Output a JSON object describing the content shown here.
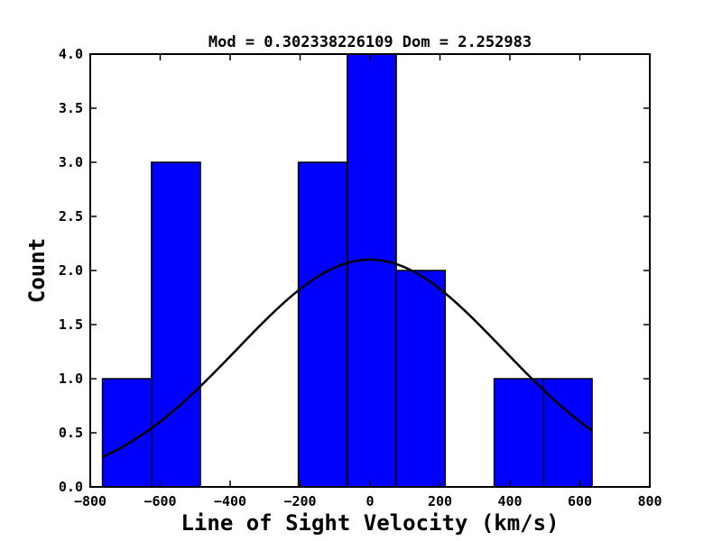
{
  "chart_data": {
    "type": "bar",
    "title": "Mod = 0.302338226109 Dom = 2.252983",
    "xlabel": "Line of Sight Velocity (km/s)",
    "ylabel": "Count",
    "xlim": [
      -800,
      800
    ],
    "ylim": [
      0,
      4
    ],
    "xticks": [
      -800,
      -600,
      -400,
      -200,
      0,
      200,
      400,
      600,
      800
    ],
    "xtick_labels": [
      "−800",
      "−600",
      "−400",
      "−200",
      "0",
      "200",
      "400",
      "600",
      "800"
    ],
    "yticks": [
      0,
      0.5,
      1,
      1.5,
      2,
      2.5,
      3,
      3.5,
      4
    ],
    "ytick_labels": [
      "0.0",
      "0.5",
      "1.0",
      "1.5",
      "2.0",
      "2.5",
      "3.0",
      "3.5",
      "4.0"
    ],
    "bins": [
      {
        "x0": -765,
        "x1": -625,
        "count": 1
      },
      {
        "x0": -625,
        "x1": -485,
        "count": 3
      },
      {
        "x0": -485,
        "x1": -345,
        "count": 0
      },
      {
        "x0": -345,
        "x1": -205,
        "count": 0
      },
      {
        "x0": -205,
        "x1": -65,
        "count": 3
      },
      {
        "x0": -65,
        "x1": 75,
        "count": 4
      },
      {
        "x0": 75,
        "x1": 215,
        "count": 2
      },
      {
        "x0": 215,
        "x1": 355,
        "count": 0
      },
      {
        "x0": 355,
        "x1": 495,
        "count": 1
      },
      {
        "x0": 495,
        "x1": 635,
        "count": 1
      }
    ],
    "fit_curve": {
      "type": "gaussian",
      "mean": 0,
      "peak": 2.1,
      "sigma": 380,
      "x_range": [
        -765,
        635
      ]
    },
    "bar_color": "#0000ff",
    "edge_color": "#000000",
    "curve_color": "#000000",
    "grid": false,
    "legend": "none"
  }
}
